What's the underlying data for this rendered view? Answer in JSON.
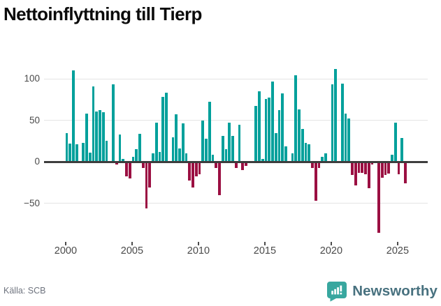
{
  "title": "Nettoinflyttning till Tierp",
  "source": "Källa: SCB",
  "brand": "Newsworthy",
  "colors": {
    "positive_bar": "#00a09b",
    "negative_bar": "#9b0f42",
    "grid": "#e4e4e4",
    "zero_axis": "#3d3d3d",
    "axis_text": "#4a4a4a",
    "title_text": "#0b0b0b",
    "source_text": "#6e737e",
    "brand_text": "#48717f",
    "logo": "#38a79f"
  },
  "chart_data": {
    "type": "bar",
    "title": "Nettoinflyttning till Tierp",
    "frequency": "quarterly",
    "xlabel": "",
    "ylabel": "",
    "grid": true,
    "legend_position": "none",
    "ylim": [
      -94.5,
      123.5
    ],
    "yticks": [
      100,
      50,
      0,
      -50
    ],
    "yticklabels": [
      "100",
      "50",
      "0",
      "−50"
    ],
    "xticks": [
      2000,
      2005,
      2010,
      2015,
      2020,
      2025
    ],
    "positive_color": "#00a09b",
    "negative_color": "#9b0f42",
    "x_quarters": [
      "2000 Q1",
      "2000 Q2",
      "2000 Q3",
      "2000 Q4",
      "2001 Q1",
      "2001 Q2",
      "2001 Q3",
      "2001 Q4",
      "2002 Q1",
      "2002 Q2",
      "2002 Q3",
      "2002 Q4",
      "2003 Q1",
      "2003 Q2",
      "2003 Q3",
      "2003 Q4",
      "2004 Q1",
      "2004 Q2",
      "2004 Q3",
      "2004 Q4",
      "2005 Q1",
      "2005 Q2",
      "2005 Q3",
      "2005 Q4",
      "2006 Q1",
      "2006 Q2",
      "2006 Q3",
      "2006 Q4",
      "2007 Q1",
      "2007 Q2",
      "2007 Q3",
      "2007 Q4",
      "2008 Q1",
      "2008 Q2",
      "2008 Q3",
      "2008 Q4",
      "2009 Q1",
      "2009 Q2",
      "2009 Q3",
      "2009 Q4",
      "2010 Q1",
      "2010 Q2",
      "2010 Q3",
      "2010 Q4",
      "2011 Q1",
      "2011 Q2",
      "2011 Q3",
      "2011 Q4",
      "2012 Q1",
      "2012 Q2",
      "2012 Q3",
      "2012 Q4",
      "2013 Q1",
      "2013 Q2",
      "2013 Q3",
      "2013 Q4",
      "2014 Q1",
      "2014 Q2",
      "2014 Q3",
      "2014 Q4",
      "2015 Q1",
      "2015 Q2",
      "2015 Q3",
      "2015 Q4",
      "2016 Q1",
      "2016 Q2",
      "2016 Q3",
      "2016 Q4",
      "2017 Q1",
      "2017 Q2",
      "2017 Q3",
      "2017 Q4",
      "2018 Q1",
      "2018 Q2",
      "2018 Q3",
      "2018 Q4",
      "2019 Q1",
      "2019 Q2",
      "2019 Q3",
      "2019 Q4",
      "2020 Q1",
      "2020 Q2",
      "2020 Q3",
      "2020 Q4",
      "2021 Q1",
      "2021 Q2",
      "2021 Q3",
      "2021 Q4",
      "2022 Q1",
      "2022 Q2",
      "2022 Q3",
      "2022 Q4",
      "2023 Q1",
      "2023 Q2",
      "2023 Q3",
      "2023 Q4",
      "2024 Q1",
      "2024 Q2",
      "2024 Q3",
      "2024 Q4",
      "2025 Q1",
      "2025 Q2",
      "2025 Q3"
    ],
    "values": [
      35,
      22,
      110,
      21,
      0,
      23,
      58,
      11,
      91,
      61,
      62,
      60,
      25,
      0,
      93,
      -3,
      33,
      4,
      -17,
      -20,
      6,
      15,
      34,
      -7,
      -56,
      -31,
      10,
      47,
      12,
      78,
      83,
      0,
      30,
      57,
      16,
      46,
      10,
      -22,
      -31,
      -17,
      -15,
      50,
      28,
      72,
      9,
      -7,
      -40,
      31,
      15,
      47,
      31,
      -7,
      45,
      -10,
      -5,
      0,
      0,
      67,
      85,
      4,
      76,
      77,
      97,
      35,
      62,
      82,
      19,
      0,
      10,
      104,
      63,
      40,
      23,
      21,
      -7,
      -47,
      -7,
      6,
      10,
      0,
      93,
      112,
      0,
      94,
      58,
      52,
      -16,
      -28,
      -13,
      -13,
      -15,
      -32,
      -3,
      0,
      -85,
      -19,
      -16,
      -14,
      9,
      47,
      -15,
      29,
      -26
    ]
  }
}
